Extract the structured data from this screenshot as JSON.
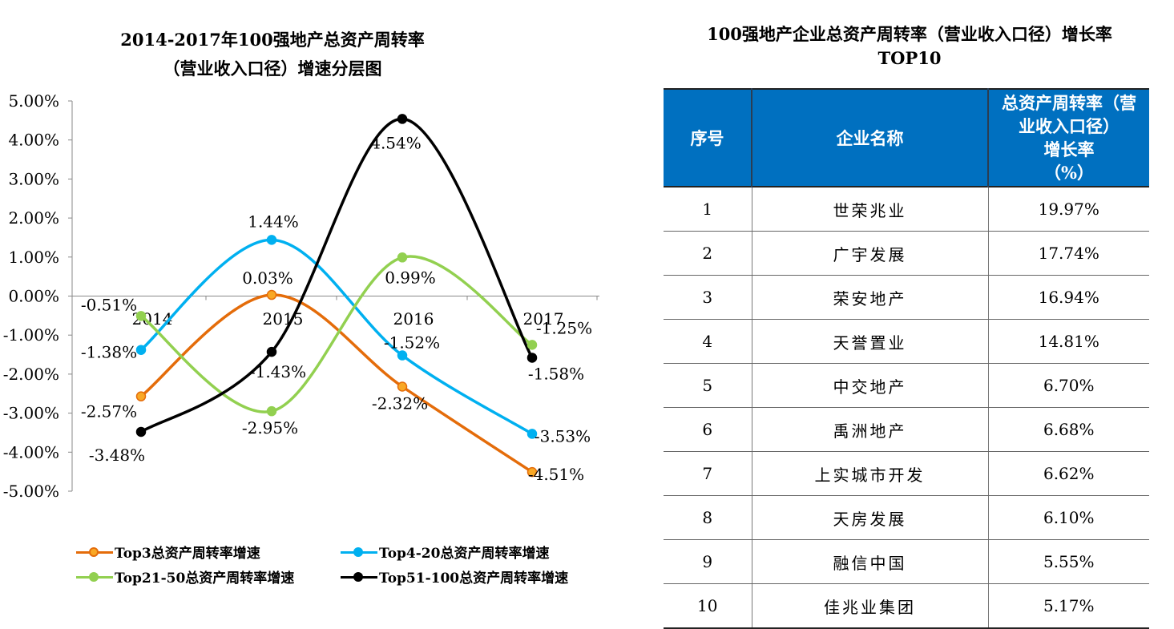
{
  "chart": {
    "title_line1": "2014-2017年100强地产总资产周转率",
    "title_line2": "（营业收入口径）增速分层图"
  },
  "chart_data": {
    "type": "line",
    "smooth": true,
    "title": "2014-2017年100强地产总资产周转率（营业收入口径）增速分层图",
    "x": [
      "2014",
      "2015",
      "2016",
      "2017"
    ],
    "ylim": [
      -5,
      5
    ],
    "yticks": [
      5,
      4,
      3,
      2,
      1,
      0,
      -1,
      -2,
      -3,
      -4,
      -5
    ],
    "ytick_labels": [
      "5.00%",
      "4.00%",
      "3.00%",
      "2.00%",
      "1.00%",
      "0.00%",
      "-1.00%",
      "-2.00%",
      "-3.00%",
      "-4.00%",
      "-5.00%"
    ],
    "grid": false,
    "legend_position": "bottom",
    "series": [
      {
        "name": "Top3总资产周转率增速",
        "color": "#e46c0a",
        "marker_fill": "#f9a825",
        "values": [
          -2.57,
          0.03,
          -2.32,
          -4.51
        ],
        "labels": [
          "-2.57%",
          "0.03%",
          "-2.32%",
          "-4.51%"
        ]
      },
      {
        "name": "Top4-20总资产周转率增速",
        "color": "#00b0f0",
        "marker_fill": "#00b0f0",
        "values": [
          -1.38,
          1.44,
          -1.52,
          -3.53
        ],
        "labels": [
          "-1.38%",
          "1.44%",
          "-1.52%",
          "-3.53%"
        ]
      },
      {
        "name": "Top21-50总资产周转率增速",
        "color": "#92d050",
        "marker_fill": "#92d050",
        "values": [
          -0.51,
          -2.95,
          0.99,
          -1.25
        ],
        "labels": [
          "-0.51%",
          "-2.95%",
          "0.99%",
          "-1.25%"
        ]
      },
      {
        "name": "Top51-100总资产周转率增速",
        "color": "#000000",
        "marker_fill": "#000000",
        "values": [
          -3.48,
          -1.43,
          4.54,
          -1.58
        ],
        "labels": [
          "-3.48%",
          "-1.43%",
          "4.54%",
          "-1.58%"
        ]
      }
    ]
  },
  "table": {
    "title_line1": "100强地产企业总资产周转率（营业收入口径）增长率",
    "title_line2": "TOP10",
    "headers": {
      "rank": "序号",
      "name": "企业名称",
      "rate_line1": "总资产周转率（营",
      "rate_line2": "业收入口径）",
      "rate_line3": "增长率",
      "rate_line4": "（%）"
    },
    "header_color": "#0070c0",
    "rows": [
      {
        "rank": "1",
        "name": "世荣兆业",
        "rate": "19.97%"
      },
      {
        "rank": "2",
        "name": "广宇发展",
        "rate": "17.74%"
      },
      {
        "rank": "3",
        "name": "荣安地产",
        "rate": "16.94%"
      },
      {
        "rank": "4",
        "name": "天誉置业",
        "rate": "14.81%"
      },
      {
        "rank": "5",
        "name": "中交地产",
        "rate": "6.70%"
      },
      {
        "rank": "6",
        "name": "禹洲地产",
        "rate": "6.68%"
      },
      {
        "rank": "7",
        "name": "上实城市开发",
        "rate": "6.62%"
      },
      {
        "rank": "8",
        "name": "天房发展",
        "rate": "6.10%"
      },
      {
        "rank": "9",
        "name": "融信中国",
        "rate": "5.55%"
      },
      {
        "rank": "10",
        "name": "佳兆业集团",
        "rate": "5.17%"
      }
    ]
  }
}
